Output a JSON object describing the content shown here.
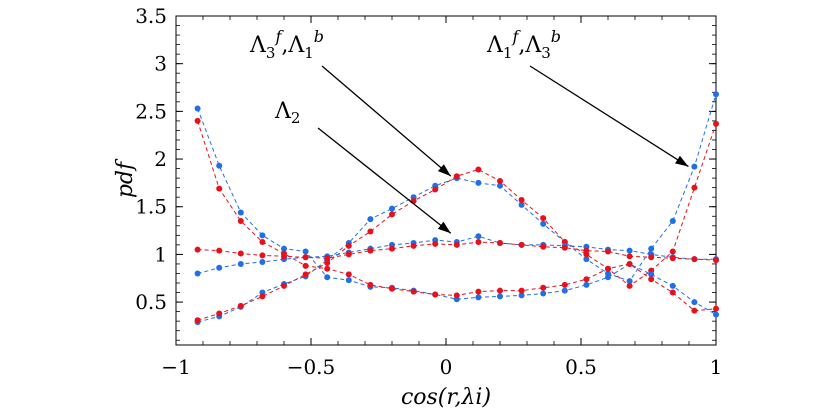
{
  "chart_data": {
    "type": "scatter",
    "xlabel": "cos(r,λi)",
    "ylabel": "pdf",
    "xlim": [
      -1,
      1
    ],
    "ylim": [
      0.05,
      3.5
    ],
    "xticks": [
      -1,
      -0.5,
      0,
      0.5,
      1
    ],
    "xtick_labels": [
      "−1",
      "−0.5",
      "0",
      "0.5",
      "1"
    ],
    "yticks": [
      0.5,
      1,
      1.5,
      2,
      2.5,
      3,
      3.5
    ],
    "ytick_labels": [
      "0.5",
      "1",
      "1.5",
      "2",
      "2.5",
      "3",
      "3.5"
    ],
    "grid": false,
    "colors": {
      "blue": "#1f6fe6",
      "red": "#e8111b"
    },
    "series": [
      {
        "color": "blue",
        "x": [
          -0.92,
          -0.84,
          -0.76,
          -0.68,
          -0.6,
          -0.52,
          -0.44,
          -0.36,
          -0.28,
          -0.2,
          -0.12,
          -0.04,
          0.04,
          0.12,
          0.2,
          0.28,
          0.36,
          0.44,
          0.52,
          0.6,
          0.68,
          0.76,
          0.84,
          0.92,
          1.0
        ],
        "y": [
          0.29,
          0.35,
          0.45,
          0.6,
          0.69,
          0.77,
          0.94,
          1.12,
          1.37,
          1.48,
          1.6,
          1.72,
          1.8,
          1.75,
          1.72,
          1.52,
          1.32,
          1.13,
          0.95,
          0.8,
          0.72,
          1.06,
          1.35,
          1.92,
          2.68
        ]
      },
      {
        "color": "red",
        "x": [
          -0.92,
          -0.84,
          -0.76,
          -0.68,
          -0.6,
          -0.52,
          -0.44,
          -0.36,
          -0.28,
          -0.2,
          -0.12,
          -0.04,
          0.04,
          0.12,
          0.2,
          0.28,
          0.36,
          0.44,
          0.52,
          0.6,
          0.68,
          0.76,
          0.84,
          0.92,
          1.0
        ],
        "y": [
          0.31,
          0.38,
          0.46,
          0.56,
          0.67,
          0.79,
          0.91,
          1.09,
          1.24,
          1.42,
          1.56,
          1.68,
          1.82,
          1.89,
          1.77,
          1.57,
          1.38,
          1.13,
          1.0,
          0.85,
          0.67,
          0.83,
          1.03,
          1.7,
          2.37
        ]
      },
      {
        "color": "blue",
        "x": [
          -0.92,
          -0.84,
          -0.76,
          -0.68,
          -0.6,
          -0.52,
          -0.44,
          -0.36,
          -0.28,
          -0.2,
          -0.12,
          -0.04,
          0.04,
          0.12,
          0.2,
          0.28,
          0.36,
          0.44,
          0.52,
          0.6,
          0.68,
          0.76,
          0.84,
          0.92,
          1.0
        ],
        "y": [
          2.53,
          1.93,
          1.44,
          1.2,
          1.06,
          1.03,
          0.76,
          0.73,
          0.66,
          0.65,
          0.62,
          0.58,
          0.53,
          0.55,
          0.56,
          0.57,
          0.59,
          0.62,
          0.68,
          0.76,
          0.9,
          0.79,
          0.67,
          0.5,
          0.37
        ]
      },
      {
        "color": "red",
        "x": [
          -0.92,
          -0.84,
          -0.76,
          -0.68,
          -0.6,
          -0.52,
          -0.44,
          -0.36,
          -0.28,
          -0.2,
          -0.12,
          -0.04,
          0.04,
          0.12,
          0.2,
          0.28,
          0.36,
          0.44,
          0.52,
          0.6,
          0.68,
          0.76,
          0.84,
          0.92,
          1.0
        ],
        "y": [
          2.4,
          1.69,
          1.35,
          1.13,
          1.01,
          0.88,
          0.85,
          0.79,
          0.68,
          0.64,
          0.61,
          0.58,
          0.57,
          0.61,
          0.62,
          0.62,
          0.65,
          0.68,
          0.74,
          0.85,
          0.9,
          0.74,
          0.6,
          0.41,
          0.43
        ]
      },
      {
        "color": "blue",
        "x": [
          -0.92,
          -0.84,
          -0.76,
          -0.68,
          -0.6,
          -0.52,
          -0.44,
          -0.36,
          -0.28,
          -0.2,
          -0.12,
          -0.04,
          0.04,
          0.12,
          0.2,
          0.28,
          0.36,
          0.44,
          0.52,
          0.6,
          0.68,
          0.76,
          0.84,
          0.92,
          1.0
        ],
        "y": [
          0.8,
          0.86,
          0.9,
          0.92,
          0.95,
          0.97,
          0.98,
          1.02,
          1.06,
          1.1,
          1.12,
          1.15,
          1.13,
          1.19,
          1.12,
          1.1,
          1.1,
          1.09,
          1.08,
          1.05,
          1.04,
          1.0,
          0.97,
          0.95,
          0.95
        ]
      },
      {
        "color": "red",
        "x": [
          -0.92,
          -0.84,
          -0.76,
          -0.68,
          -0.6,
          -0.52,
          -0.44,
          -0.36,
          -0.28,
          -0.2,
          -0.12,
          -0.04,
          0.04,
          0.12,
          0.2,
          0.28,
          0.36,
          0.44,
          0.52,
          0.6,
          0.68,
          0.76,
          0.84,
          0.92,
          1.0
        ],
        "y": [
          1.05,
          1.04,
          1.01,
          0.99,
          0.98,
          0.97,
          0.96,
          1.0,
          1.04,
          1.06,
          1.09,
          1.11,
          1.1,
          1.13,
          1.12,
          1.1,
          1.08,
          1.07,
          1.04,
          1.03,
          0.98,
          0.97,
          0.96,
          0.95,
          0.94
        ]
      }
    ],
    "annotations": [
      {
        "base": "Λ",
        "sub1": "3",
        "sup1": "f",
        "sep": ",",
        "base2": "Λ",
        "sub2": "1",
        "sup2": "b",
        "arrow_to": [
          0.04,
          1.79
        ]
      },
      {
        "base": "Λ",
        "sub1": "1",
        "sup1": "f",
        "sep": ",",
        "base2": "Λ",
        "sub2": "3",
        "sup2": "b",
        "arrow_to": [
          0.92,
          1.89
        ]
      },
      {
        "base": "Λ",
        "sub1": "2",
        "arrow_to": [
          0.04,
          1.19
        ]
      }
    ]
  }
}
